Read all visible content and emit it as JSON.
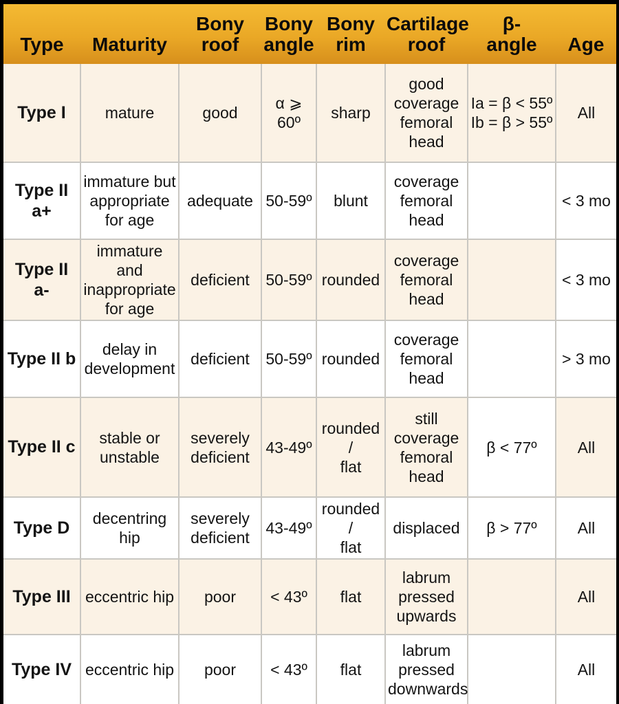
{
  "colors": {
    "header_gradient_top": "#f4ba33",
    "header_gradient_bottom": "#d78f1c",
    "row_cream": "#fbf2e5",
    "row_white": "#ffffff",
    "grid_line": "#c9c7c2",
    "frame": "#000000",
    "text": "#141414"
  },
  "table": {
    "columns": [
      {
        "key": "type",
        "label": "Type"
      },
      {
        "key": "maturity",
        "label": "Maturity"
      },
      {
        "key": "bony_roof",
        "label": "Bony\nroof"
      },
      {
        "key": "bony_angle",
        "label": "Bony\nangle"
      },
      {
        "key": "bony_rim",
        "label": "Bony\nrim"
      },
      {
        "key": "cartilage_roof",
        "label": "Cartilage\nroof"
      },
      {
        "key": "beta_angle",
        "label": "β-\nangle"
      },
      {
        "key": "age",
        "label": "Age"
      }
    ],
    "rows": [
      {
        "bg": "cream",
        "overrides": {},
        "cells": {
          "type": "Type I",
          "maturity": "mature",
          "bony_roof": "good",
          "bony_angle": "α ⩾\n60º",
          "bony_rim": "sharp",
          "cartilage_roof": "good\ncoverage\nfemoral\nhead",
          "beta_angle": "Ia = β < 55º\nIb = β > 55º",
          "age": "All"
        }
      },
      {
        "bg": "white",
        "overrides": {},
        "cells": {
          "type": "Type II a+",
          "maturity": "immature but\nappropriate\nfor age",
          "bony_roof": "adequate",
          "bony_angle": "50-59º",
          "bony_rim": "blunt",
          "cartilage_roof": "coverage\nfemoral\nhead",
          "beta_angle": "",
          "age": "< 3 mo"
        }
      },
      {
        "bg": "cream",
        "overrides": {
          "age": "white"
        },
        "cells": {
          "type": "Type II a-",
          "maturity": "immature and\ninappropriate\nfor age",
          "bony_roof": "deficient",
          "bony_angle": "50-59º",
          "bony_rim": "rounded",
          "cartilage_roof": "coverage\nfemoral\nhead",
          "beta_angle": "",
          "age": "< 3 mo"
        }
      },
      {
        "bg": "white",
        "overrides": {},
        "cells": {
          "type": "Type II b",
          "maturity": "delay in\ndevelopment",
          "bony_roof": "deficient",
          "bony_angle": "50-59º",
          "bony_rim": "rounded",
          "cartilage_roof": "coverage\nfemoral\nhead",
          "beta_angle": "",
          "age": "> 3 mo"
        }
      },
      {
        "bg": "cream",
        "overrides": {
          "beta_angle": "white"
        },
        "cells": {
          "type": "Type II c",
          "maturity": "stable or\nunstable",
          "bony_roof": "severely\ndeficient",
          "bony_angle": "43-49º",
          "bony_rim": "rounded /\nflat",
          "cartilage_roof": "still\ncoverage\nfemoral\nhead",
          "beta_angle": "β < 77º",
          "age": "All"
        }
      },
      {
        "bg": "white",
        "overrides": {},
        "cells": {
          "type": "Type D",
          "maturity": "decentring hip",
          "bony_roof": "severely\ndeficient",
          "bony_angle": "43-49º",
          "bony_rim": "rounded /\nflat",
          "cartilage_roof": "displaced",
          "beta_angle": "β > 77º",
          "age": "All"
        }
      },
      {
        "bg": "cream",
        "overrides": {},
        "cells": {
          "type": "Type III",
          "maturity": "eccentric hip",
          "bony_roof": "poor",
          "bony_angle": "< 43º",
          "bony_rim": "flat",
          "cartilage_roof": "labrum\npressed\nupwards",
          "beta_angle": "",
          "age": "All"
        }
      },
      {
        "bg": "white",
        "overrides": {},
        "cells": {
          "type": "Type IV",
          "maturity": "eccentric hip",
          "bony_roof": "poor",
          "bony_angle": "< 43º",
          "bony_rim": "flat",
          "cartilage_roof": "labrum\npressed\ndownwards",
          "beta_angle": "",
          "age": "All"
        }
      }
    ]
  },
  "chart_data": {
    "type": "table",
    "title": "Graf classification of infant hip ultrasound",
    "columns": [
      "Type",
      "Maturity",
      "Bony roof",
      "Bony angle",
      "Bony rim",
      "Cartilage roof",
      "β-angle",
      "Age"
    ],
    "rows": [
      [
        "Type I",
        "mature",
        "good",
        "α ⩾ 60º",
        "sharp",
        "good coverage femoral head",
        "Ia = β < 55º Ib = β > 55º",
        "All"
      ],
      [
        "Type II a+",
        "immature but appropriate for age",
        "adequate",
        "50-59º",
        "blunt",
        "coverage femoral head",
        "",
        "< 3 mo"
      ],
      [
        "Type II a-",
        "immature and inappropriate for age",
        "deficient",
        "50-59º",
        "rounded",
        "coverage femoral head",
        "",
        "< 3 mo"
      ],
      [
        "Type II b",
        "delay in development",
        "deficient",
        "50-59º",
        "rounded",
        "coverage femoral head",
        "",
        "> 3 mo"
      ],
      [
        "Type II c",
        "stable or unstable",
        "severely deficient",
        "43-49º",
        "rounded / flat",
        "still coverage femoral head",
        "β < 77º",
        "All"
      ],
      [
        "Type D",
        "decentring hip",
        "severely deficient",
        "43-49º",
        "rounded / flat",
        "displaced",
        "β > 77º",
        "All"
      ],
      [
        "Type III",
        "eccentric hip",
        "poor",
        "< 43º",
        "flat",
        "labrum pressed upwards",
        "",
        "All"
      ],
      [
        "Type IV",
        "eccentric hip",
        "poor",
        "< 43º",
        "flat",
        "labrum pressed downwards",
        "",
        "All"
      ]
    ]
  }
}
